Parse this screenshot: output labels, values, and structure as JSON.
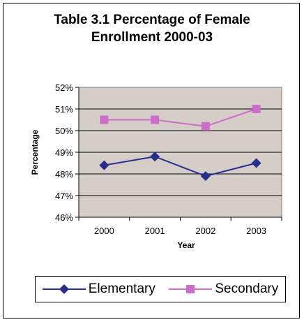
{
  "chart_data": {
    "type": "line",
    "title_line1": "Table 3.1  Percentage of Female",
    "title_line2": "Enrollment 2000-03",
    "xlabel": "Year",
    "ylabel": "Percentage",
    "categories": [
      "2000",
      "2001",
      "2002",
      "2003"
    ],
    "ylim": [
      46,
      52
    ],
    "yticks": [
      46,
      47,
      48,
      49,
      50,
      51,
      52
    ],
    "ytick_labels": [
      "46%",
      "47%",
      "48%",
      "49%",
      "50%",
      "51%",
      "52%"
    ],
    "grid": "horizontal",
    "plot_background": "#d4cdc8",
    "legend_position": "bottom",
    "series": [
      {
        "name": "Elementary",
        "values": [
          48.4,
          48.8,
          47.9,
          48.5
        ],
        "color": "#2b2d8c",
        "marker": "diamond"
      },
      {
        "name": "Secondary",
        "values": [
          50.5,
          50.5,
          50.2,
          51.0
        ],
        "color": "#cc6ec8",
        "marker": "square"
      }
    ]
  }
}
